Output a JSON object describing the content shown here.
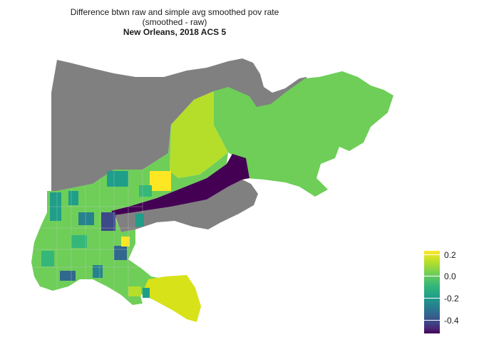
{
  "title": {
    "line1": "Difference btwn raw and simple avg smoothed pov rate",
    "line2": "(smoothed - raw)",
    "subtitle": "New Orleans, 2018 ACS 5"
  },
  "legend": {
    "labels": [
      "0.2",
      "0.0",
      "-0.2",
      "-0.4"
    ]
  },
  "colors": {
    "no_data": "#808080",
    "ramp": [
      "#440154",
      "#482878",
      "#3e4989",
      "#31688e",
      "#26828e",
      "#1f9e89",
      "#35b779",
      "#6ece58",
      "#b5de2b",
      "#fde725"
    ]
  }
}
